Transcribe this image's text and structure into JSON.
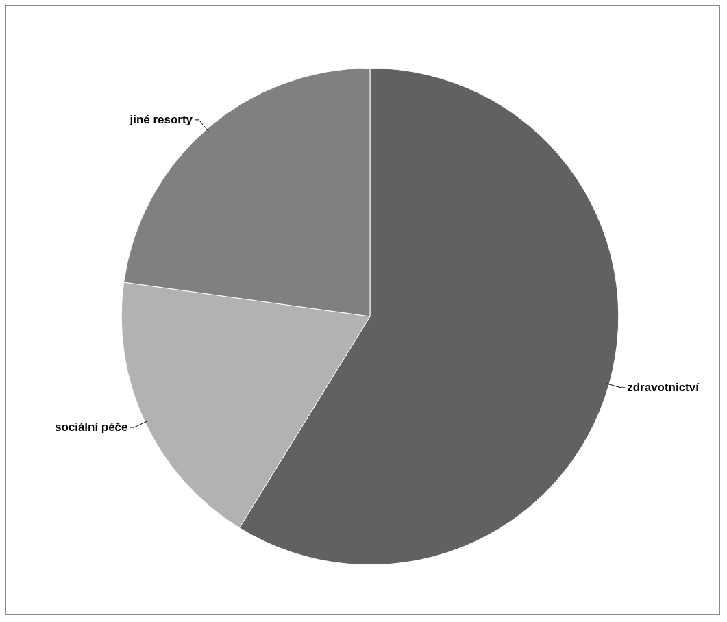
{
  "chart_data": {
    "type": "pie",
    "categories": [
      "zdravotnictví",
      "sociální péče",
      "jiné resorty"
    ],
    "values": [
      58.8,
      18.4,
      22.8
    ],
    "colors": [
      "#616161",
      "#b2b2b2",
      "#808080"
    ],
    "legend": false
  }
}
